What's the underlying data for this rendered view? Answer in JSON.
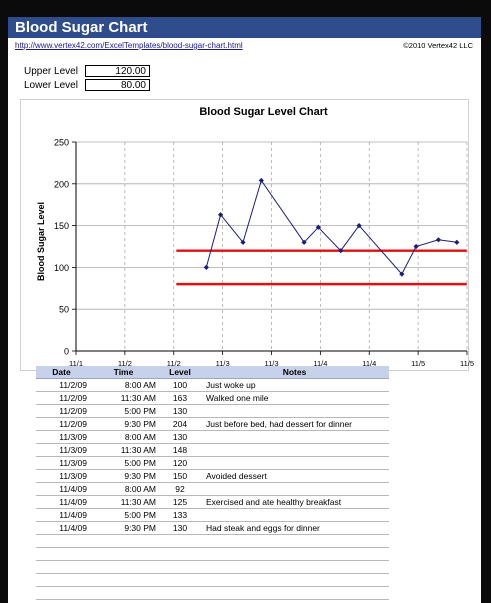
{
  "header": {
    "title": "Blood Sugar Chart",
    "url": "http://www.vertex42.com/ExcelTemplates/blood-sugar-chart.html",
    "copyright": "©2010 Vertex42 LLC"
  },
  "levels": {
    "upper_label": "Upper Level",
    "upper_value": "120.00",
    "lower_label": "Lower Level",
    "lower_value": "80.00"
  },
  "colors": {
    "banner": "#2f4d8c",
    "series": "#1c1c7a",
    "limit_lines": "#e01010",
    "table_header": "#c7d1ea"
  },
  "chart_data": {
    "type": "line",
    "title": "Blood Sugar Level Chart",
    "ylabel": "Blood Sugar Level",
    "xlabel": "",
    "ylim": [
      0,
      250
    ],
    "yticks": [
      0,
      50,
      100,
      150,
      200,
      250
    ],
    "xlim": [
      "11/1",
      "11/5"
    ],
    "xtick_labels": [
      "11/1",
      "11/2",
      "11/2",
      "11/3",
      "11/3",
      "11/4",
      "11/4",
      "11/5",
      "11/5"
    ],
    "grid": true,
    "series": [
      {
        "x": [
          "11/2/09 8:00 AM",
          "11/2/09 11:30 AM",
          "11/2/09 5:00 PM",
          "11/2/09 9:30 PM",
          "11/3/09 8:00 AM",
          "11/3/09 11:30 AM",
          "11/3/09 5:00 PM",
          "11/3/09 9:30 PM",
          "11/4/09 8:00 AM",
          "11/4/09 11:30 AM",
          "11/4/09 5:00 PM",
          "11/4/09 9:30 PM"
        ],
        "values": [
          100,
          163,
          130,
          204,
          130,
          148,
          120,
          150,
          92,
          125,
          133,
          130
        ],
        "marker": "diamond"
      }
    ],
    "reference_lines": [
      {
        "value": 120,
        "color": "#e01010"
      },
      {
        "value": 80,
        "color": "#e01010"
      }
    ]
  },
  "table": {
    "headers": {
      "date": "Date",
      "time": "Time",
      "level": "Level",
      "notes": "Notes"
    },
    "rows": [
      {
        "date": "11/2/09",
        "time": "8:00 AM",
        "level": "100",
        "notes": "Just woke up"
      },
      {
        "date": "11/2/09",
        "time": "11:30 AM",
        "level": "163",
        "notes": "Walked one mile"
      },
      {
        "date": "11/2/09",
        "time": "5:00 PM",
        "level": "130",
        "notes": ""
      },
      {
        "date": "11/2/09",
        "time": "9:30 PM",
        "level": "204",
        "notes": "Just before bed, had dessert for dinner"
      },
      {
        "date": "11/3/09",
        "time": "8:00 AM",
        "level": "130",
        "notes": ""
      },
      {
        "date": "11/3/09",
        "time": "11:30 AM",
        "level": "148",
        "notes": ""
      },
      {
        "date": "11/3/09",
        "time": "5:00 PM",
        "level": "120",
        "notes": ""
      },
      {
        "date": "11/3/09",
        "time": "9:30 PM",
        "level": "150",
        "notes": "Avoided dessert"
      },
      {
        "date": "11/4/09",
        "time": "8:00 AM",
        "level": "92",
        "notes": ""
      },
      {
        "date": "11/4/09",
        "time": "11:30 AM",
        "level": "125",
        "notes": "Exercised and ate healthy breakfast"
      },
      {
        "date": "11/4/09",
        "time": "5:00 PM",
        "level": "133",
        "notes": ""
      },
      {
        "date": "11/4/09",
        "time": "9:30 PM",
        "level": "130",
        "notes": "Had steak and eggs for dinner"
      },
      {
        "date": "",
        "time": "",
        "level": "",
        "notes": ""
      },
      {
        "date": "",
        "time": "",
        "level": "",
        "notes": ""
      },
      {
        "date": "",
        "time": "",
        "level": "",
        "notes": ""
      },
      {
        "date": "",
        "time": "",
        "level": "",
        "notes": ""
      },
      {
        "date": "",
        "time": "",
        "level": "",
        "notes": ""
      }
    ]
  }
}
